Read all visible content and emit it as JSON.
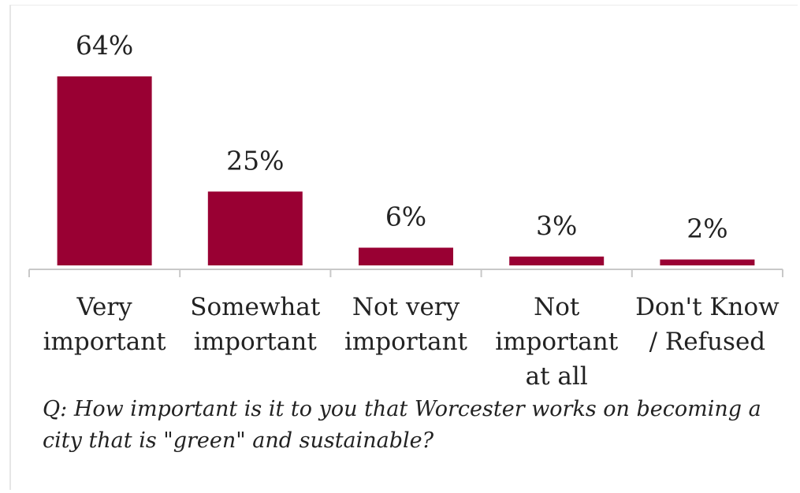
{
  "chart_data": {
    "type": "bar",
    "categories": [
      [
        "Very",
        "important"
      ],
      [
        "Somewhat",
        "important"
      ],
      [
        "Not very",
        "important"
      ],
      [
        "Not",
        "important",
        "at all"
      ],
      [
        "Don't Know",
        "/ Refused"
      ]
    ],
    "values": [
      64,
      25,
      6,
      3,
      2
    ],
    "data_labels": [
      "64%",
      "25%",
      "6%",
      "3%",
      "2%"
    ],
    "ylim": [
      0,
      64
    ],
    "grid": false,
    "bar_color": "#990033"
  },
  "caption": "Q: How important is it to you that Worcester works on becoming a city that is \"green\" and sustainable?"
}
